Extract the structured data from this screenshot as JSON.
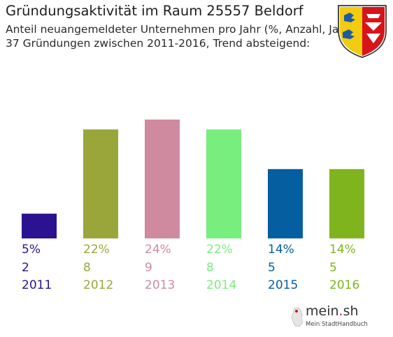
{
  "title": "Gründungsaktivität im Raum 25557 Beldorf",
  "subtitle_line1": "Anteil neuangemeldeter Unternehmen pro Jahr (%, Anzahl, Jahr)",
  "subtitle_line2": "37 Gründungen zwischen 2011-2016, Trend absteigend:",
  "brand": {
    "name_main": "mein",
    "name_dot": ".",
    "name_tld": "sh",
    "tagline": "Mein StadtHandbuch"
  },
  "crest_icon": "schleswig-holstein-coat-of-arms-icon",
  "chart_data": {
    "type": "bar",
    "title": "Gründungsaktivität im Raum 25557 Beldorf",
    "categories": [
      "2011",
      "2012",
      "2013",
      "2014",
      "2015",
      "2016"
    ],
    "values": [
      5,
      22,
      24,
      22,
      14,
      14
    ],
    "percent_labels": [
      "5%",
      "22%",
      "24%",
      "22%",
      "14%",
      "14%"
    ],
    "counts": [
      "2",
      "8",
      "9",
      "8",
      "5",
      "5"
    ],
    "colors": [
      "#2a1290",
      "#9aa63a",
      "#cf8aa0",
      "#78ee7e",
      "#045ea0",
      "#7fb41e"
    ],
    "xlabel": "",
    "ylabel": "",
    "ylim": [
      0,
      24
    ],
    "grid": false,
    "legend": "none"
  }
}
